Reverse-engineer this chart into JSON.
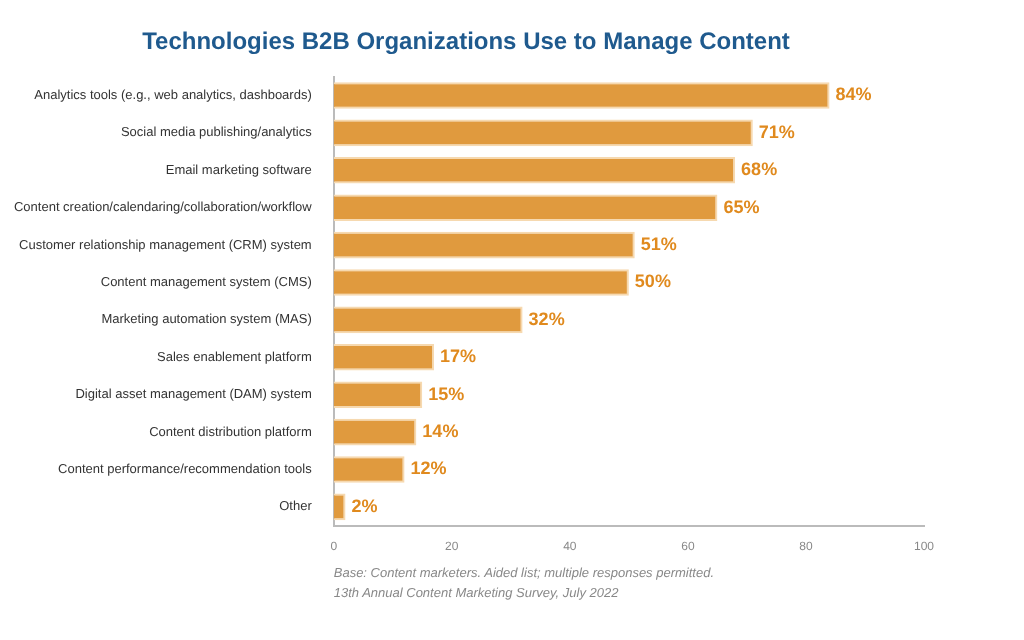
{
  "chart_data": {
    "type": "bar",
    "orientation": "horizontal",
    "title": "Technologies B2B Organizations Use to Manage Content",
    "categories": [
      "Analytics tools (e.g., web analytics, dashboards)",
      "Social media publishing/analytics",
      "Email marketing software",
      "Content creation/calendaring/collaboration/workflow",
      "Customer relationship management (CRM) system",
      "Content management system (CMS)",
      "Marketing automation system (MAS)",
      "Sales enablement platform",
      "Digital asset management (DAM) system",
      "Content distribution platform",
      "Content performance/recommendation tools",
      "Other"
    ],
    "values": [
      84,
      71,
      68,
      65,
      51,
      50,
      32,
      17,
      15,
      14,
      12,
      2
    ],
    "value_labels": [
      "84%",
      "71%",
      "68%",
      "65%",
      "51%",
      "50%",
      "32%",
      "17%",
      "15%",
      "14%",
      "12%",
      "2%"
    ],
    "color": "#e09a3e",
    "xlim": [
      0,
      100
    ],
    "xticks": [
      0,
      20,
      40,
      60,
      80,
      100
    ],
    "grid": false,
    "legend": false,
    "annotations": [
      "Base: Content marketers. Aided list; multiple responses permitted.",
      "13th Annual Content Marketing Survey, July 2022"
    ]
  }
}
